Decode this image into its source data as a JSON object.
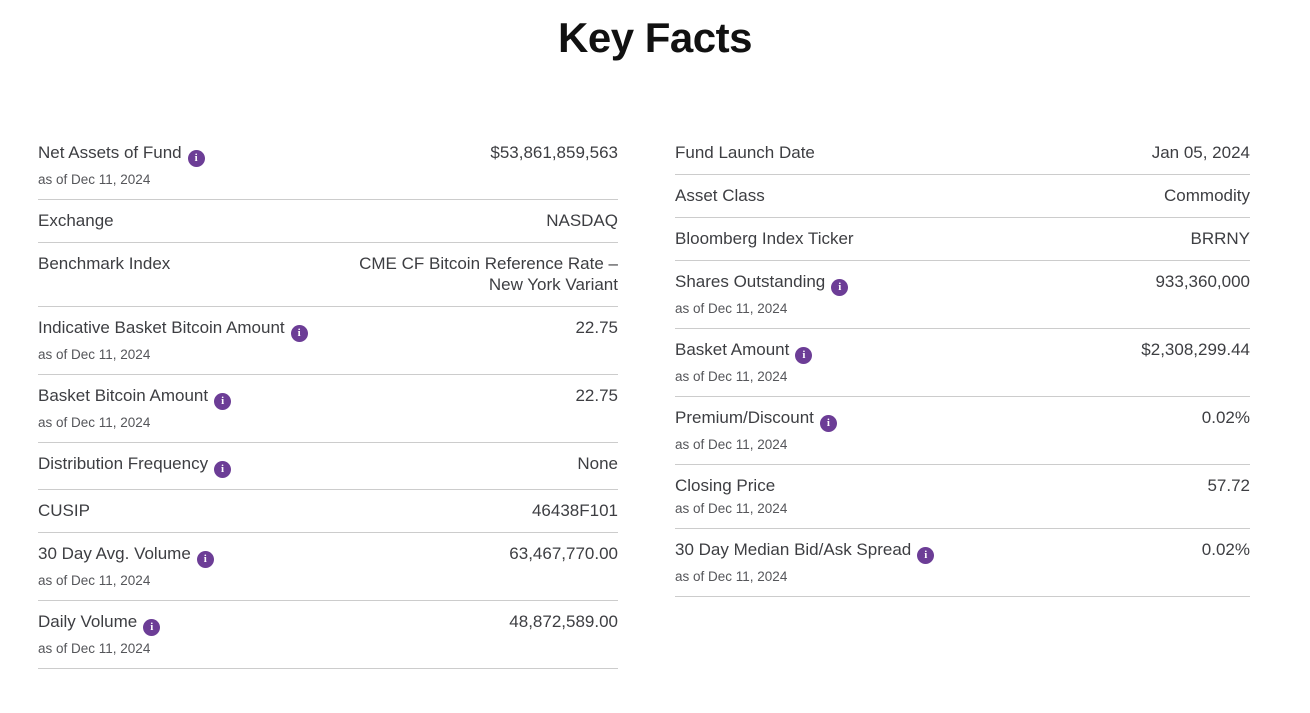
{
  "page": {
    "title": "Key Facts"
  },
  "colors": {
    "info_icon_purple": "#6c3d96",
    "divider_gray": "#cccccc",
    "text_dark": "#3d3e42"
  },
  "icons": {
    "info": "i"
  },
  "columns": {
    "left": {
      "rows": [
        {
          "label": "Net Assets of Fund",
          "info_icon": true,
          "as_of": "as of Dec 11, 2024",
          "value": "$53,861,859,563"
        },
        {
          "label": "Exchange",
          "info_icon": false,
          "value": "NASDAQ"
        },
        {
          "label": "Benchmark Index",
          "info_icon": false,
          "value": "CME CF Bitcoin Reference Rate – New York Variant"
        },
        {
          "label": "Indicative Basket Bitcoin Amount",
          "info_icon": true,
          "as_of": "as of Dec 11, 2024",
          "value": "22.75"
        },
        {
          "label": "Basket Bitcoin Amount",
          "info_icon": true,
          "as_of": "as of Dec 11, 2024",
          "value": "22.75"
        },
        {
          "label": "Distribution Frequency",
          "info_icon": true,
          "value": "None"
        },
        {
          "label": "CUSIP",
          "info_icon": false,
          "value": "46438F101"
        },
        {
          "label": "30 Day Avg. Volume",
          "info_icon": true,
          "as_of": "as of Dec 11, 2024",
          "value": "63,467,770.00"
        },
        {
          "label": "Daily Volume",
          "info_icon": true,
          "as_of": "as of Dec 11, 2024",
          "value": "48,872,589.00"
        }
      ]
    },
    "right": {
      "rows": [
        {
          "label": "Fund Launch Date",
          "info_icon": false,
          "value": "Jan 05, 2024"
        },
        {
          "label": "Asset Class",
          "info_icon": false,
          "value": "Commodity"
        },
        {
          "label": "Bloomberg Index Ticker",
          "info_icon": false,
          "value": "BRRNY"
        },
        {
          "label": "Shares Outstanding",
          "info_icon": true,
          "as_of": "as of Dec 11, 2024",
          "value": "933,360,000"
        },
        {
          "label": "Basket Amount",
          "info_icon": true,
          "as_of": "as of Dec 11, 2024",
          "value": "$2,308,299.44"
        },
        {
          "label": "Premium/Discount",
          "info_icon": true,
          "as_of": "as of Dec 11, 2024",
          "value": "0.02%"
        },
        {
          "label": "Closing Price",
          "info_icon": false,
          "as_of": "as of Dec 11, 2024",
          "value": "57.72"
        },
        {
          "label": "30 Day Median Bid/Ask Spread",
          "info_icon": true,
          "as_of": "as of Dec 11, 2024",
          "value": "0.02%"
        }
      ]
    }
  }
}
